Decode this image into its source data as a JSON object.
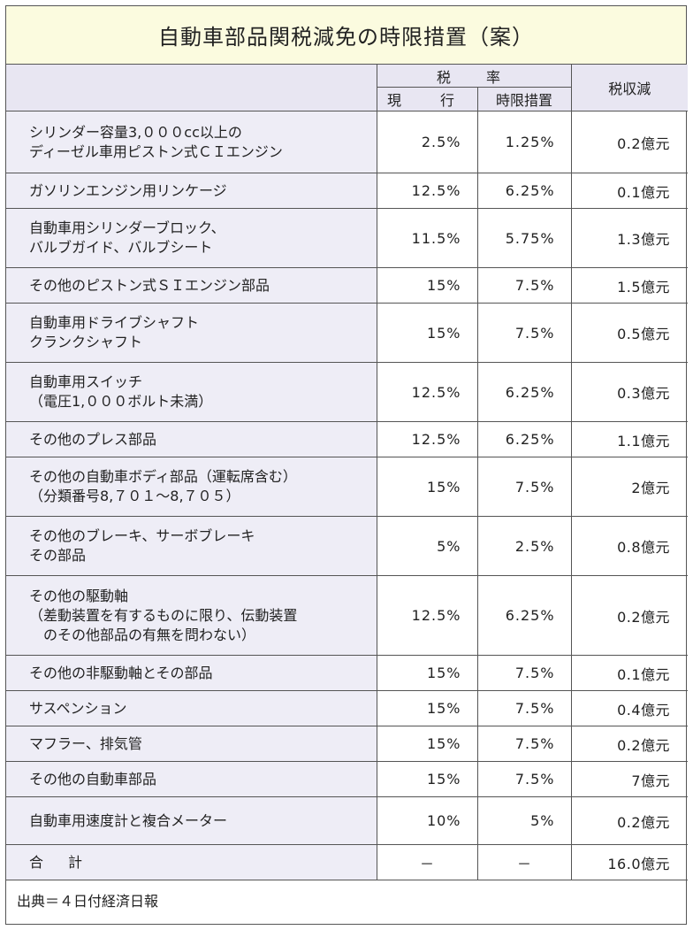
{
  "title": "自動車部品関税減免の時限措置（案）",
  "header": {
    "tax_rate": "税　率",
    "current": "現　行",
    "temporary": "時限措置",
    "revenue_loss": "税収減"
  },
  "rows": [
    {
      "item": [
        "シリンダー容量3,０００cc以上の",
        "ディーゼル車用ピストン式ＣＩエンジン"
      ],
      "current": "2.5%",
      "temporary": "1.25%",
      "loss": "0.2億元"
    },
    {
      "item": [
        "ガソリンエンジン用リンケージ"
      ],
      "current": "12.5%",
      "temporary": "6.25%",
      "loss": "0.1億元"
    },
    {
      "item": [
        "自動車用シリンダーブロック、",
        "バルブガイド、バルブシート"
      ],
      "current": "11.5%",
      "temporary": "5.75%",
      "loss": "1.3億元"
    },
    {
      "item": [
        "その他のピストン式ＳＩエンジン部品"
      ],
      "current": "15%",
      "temporary": "7.5%",
      "loss": "1.5億元"
    },
    {
      "item": [
        "自動車用ドライブシャフト",
        "クランクシャフト"
      ],
      "current": "15%",
      "temporary": "7.5%",
      "loss": "0.5億元"
    },
    {
      "item": [
        "自動車用スイッチ",
        "（電圧1,０００ボルト未満）"
      ],
      "current": "12.5%",
      "temporary": "6.25%",
      "loss": "0.3億元"
    },
    {
      "item": [
        "その他のプレス部品"
      ],
      "current": "12.5%",
      "temporary": "6.25%",
      "loss": "1.1億元"
    },
    {
      "item": [
        "その他の自動車ボディ部品（運転席含む）",
        "（分類番号8,７０１～8,７０５）"
      ],
      "current": "15%",
      "temporary": "7.5%",
      "loss": "2億元"
    },
    {
      "item": [
        "その他のブレーキ、サーボブレーキ",
        "その部品"
      ],
      "current": "5%",
      "temporary": "2.5%",
      "loss": "0.8億元"
    },
    {
      "item": [
        "その他の駆動軸",
        "（差動装置を有するものに限り、伝動装置",
        "　のその他部品の有無を問わない）"
      ],
      "current": "12.5%",
      "temporary": "6.25%",
      "loss": "0.2億元"
    },
    {
      "item": [
        "その他の非駆動軸とその部品"
      ],
      "current": "15%",
      "temporary": "7.5%",
      "loss": "0.1億元"
    },
    {
      "item": [
        "サスペンション"
      ],
      "current": "15%",
      "temporary": "7.5%",
      "loss": "0.4億元"
    },
    {
      "item": [
        "マフラー、排気管"
      ],
      "current": "15%",
      "temporary": "7.5%",
      "loss": "0.2億元"
    },
    {
      "item": [
        "その他の自動車部品"
      ],
      "current": "15%",
      "temporary": "7.5%",
      "loss": "7億元"
    },
    {
      "item": [
        "自動車用速度計と複合メーター"
      ],
      "current": "10%",
      "temporary": "5%",
      "loss": "0.2億元"
    }
  ],
  "total": {
    "label": "合　計",
    "current": "－",
    "temporary": "－",
    "loss": "16.0億元"
  },
  "source": "出典＝４日付経済日報"
}
